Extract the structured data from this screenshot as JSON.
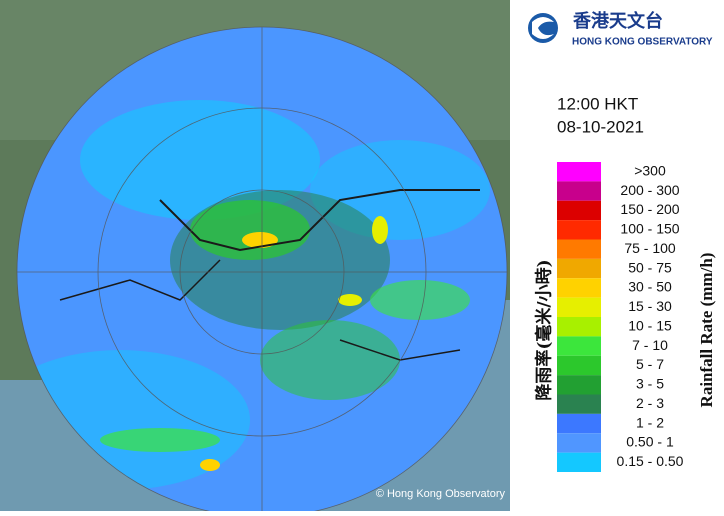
{
  "header": {
    "org_chinese": "香港天文台",
    "org_english": "HONG KONG OBSERVATORY"
  },
  "timestamp": {
    "time": "12:00 HKT",
    "date": "08-10-2021"
  },
  "legend": {
    "title_chinese": "降雨率(毫米/小時)",
    "title_english": "Rainfall Rate (mm/h)",
    "items": [
      {
        "label": ">300",
        "color": "#ff00ff"
      },
      {
        "label": "200 - 300",
        "color": "#c8008c"
      },
      {
        "label": "150 - 200",
        "color": "#dc0000"
      },
      {
        "label": "100 - 150",
        "color": "#ff2a00"
      },
      {
        "label": "75 - 100",
        "color": "#ff7a00"
      },
      {
        "label": "50 - 75",
        "color": "#f0a800"
      },
      {
        "label": "30 - 50",
        "color": "#ffd200"
      },
      {
        "label": "15 - 30",
        "color": "#e6ef00"
      },
      {
        "label": "10 - 15",
        "color": "#a8f000"
      },
      {
        "label": "7 - 10",
        "color": "#3ce63c"
      },
      {
        "label": "5 - 7",
        "color": "#2cc82c"
      },
      {
        "label": "3 - 5",
        "color": "#22a032"
      },
      {
        "label": "2 - 3",
        "color": "#2a8250"
      },
      {
        "label": "1 - 2",
        "color": "#3c78ff"
      },
      {
        "label": "0.50 - 1",
        "color": "#5096ff"
      },
      {
        "label": "0.15 - 0.50",
        "color": "#14c8ff"
      }
    ]
  },
  "map": {
    "copyright": "© Hong Kong Observatory"
  }
}
